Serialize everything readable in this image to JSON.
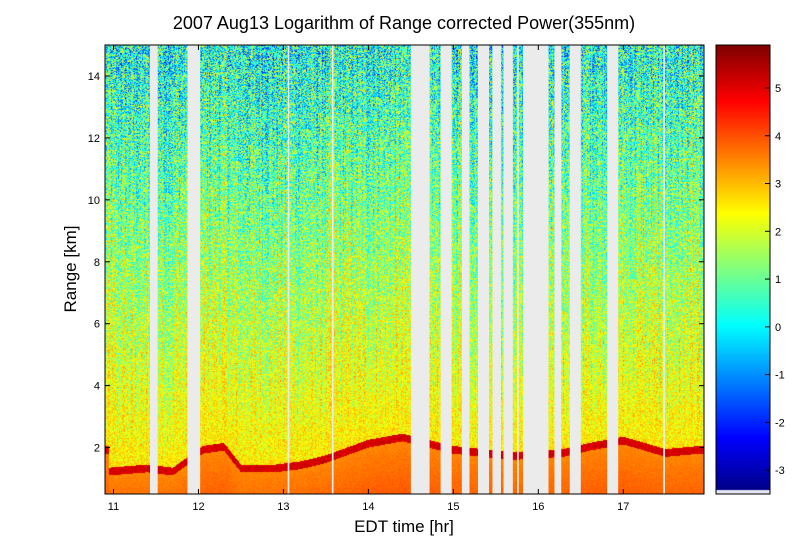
{
  "chart_data": {
    "type": "heatmap",
    "title": "2007 Aug13  Logarithm of Range corrected Power(355nm)",
    "xlabel": "EDT time [hr]",
    "ylabel": "Range [km]",
    "xlim": [
      10.9,
      17.95
    ],
    "ylim": [
      0.5,
      15
    ],
    "xticks": [
      11,
      12,
      13,
      14,
      15,
      16,
      17
    ],
    "xtick_labels": [
      "11",
      "12",
      "13",
      "14",
      "15",
      "16",
      "17"
    ],
    "yticks": [
      2,
      4,
      6,
      8,
      10,
      12,
      14
    ],
    "ytick_labels": [
      "2",
      "4",
      "6",
      "8",
      "10",
      "12",
      "14"
    ],
    "colorbar": {
      "colormap": "jet",
      "range": [
        -3.5,
        5.9
      ],
      "ticks": [
        -3,
        -2,
        -1,
        0,
        1,
        2,
        3,
        4,
        5
      ],
      "tick_labels": [
        "-3",
        "-2",
        "-1",
        "0",
        "1",
        "2",
        "3",
        "4",
        "5"
      ]
    },
    "missing_data_color": "#ebebeb",
    "no_data_intervals": [
      [
        11.43,
        11.52
      ],
      [
        11.87,
        12.02
      ],
      [
        13.05,
        13.07
      ],
      [
        13.57,
        13.59
      ],
      [
        14.5,
        14.72
      ],
      [
        14.85,
        14.98
      ],
      [
        15.1,
        15.19
      ],
      [
        15.29,
        15.42
      ],
      [
        15.46,
        15.56
      ],
      [
        15.59,
        15.7
      ],
      [
        15.75,
        15.77
      ],
      [
        15.82,
        16.12
      ],
      [
        16.19,
        16.27
      ],
      [
        16.37,
        16.5
      ],
      [
        16.81,
        16.94
      ],
      [
        17.47,
        17.49
      ]
    ],
    "boundary_layer_top_km": [
      [
        10.95,
        1.1
      ],
      [
        11.4,
        1.2
      ],
      [
        11.7,
        1.1
      ],
      [
        12.05,
        1.8
      ],
      [
        12.3,
        1.9
      ],
      [
        12.5,
        1.2
      ],
      [
        12.9,
        1.2
      ],
      [
        13.2,
        1.3
      ],
      [
        13.5,
        1.5
      ],
      [
        13.8,
        1.8
      ],
      [
        14.0,
        2.0
      ],
      [
        14.4,
        2.2
      ],
      [
        15.0,
        1.8
      ],
      [
        15.7,
        1.6
      ],
      [
        16.3,
        1.7
      ],
      [
        16.6,
        1.9
      ],
      [
        16.8,
        2.0
      ],
      [
        17.0,
        2.1
      ],
      [
        17.5,
        1.7
      ],
      [
        17.9,
        1.8
      ]
    ]
  }
}
